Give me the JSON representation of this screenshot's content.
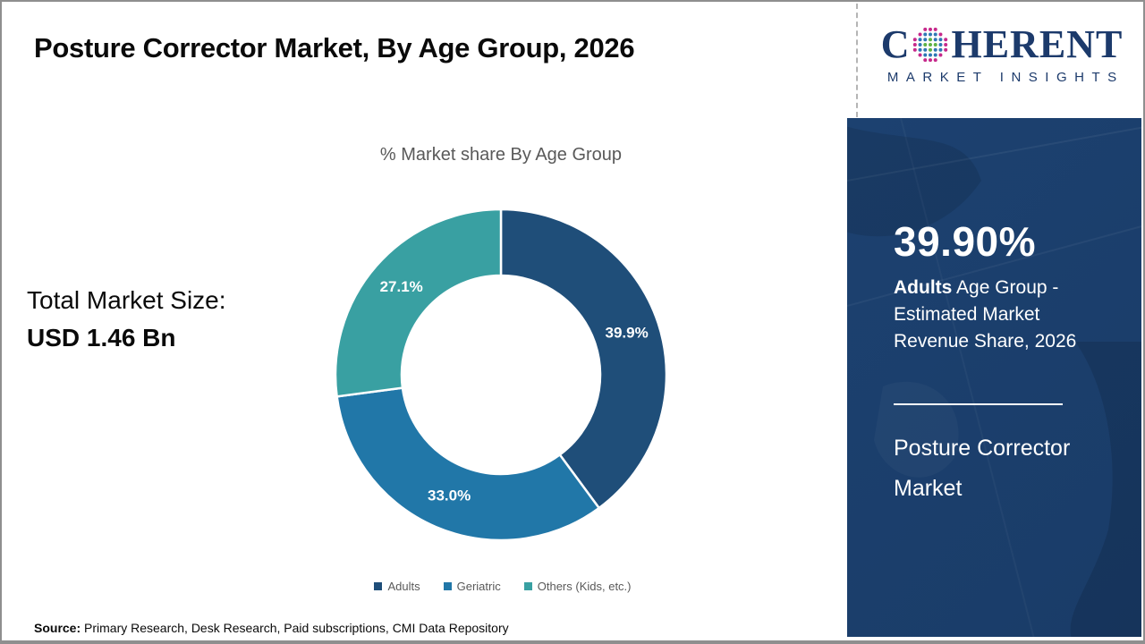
{
  "page": {
    "title": "Posture Corrector Market, By Age Group, 2026",
    "source_label": "Source:",
    "source_text": " Primary Research, Desk Research, Paid subscriptions, CMI Data Repository"
  },
  "logo": {
    "name": "Coherent Market Insights",
    "text_before_globe": "C",
    "text_after_globe": "HERENT",
    "subtitle": "MARKET INSIGHTS",
    "globe_icon": "dotted-globe-icon",
    "colors": {
      "text_navy": "#1c3a6b",
      "dot_green": "#5eb244",
      "dot_blue": "#2f77b5",
      "dot_pink": "#c6298b"
    }
  },
  "left_panel": {
    "total_label": "Total Market Size:",
    "total_value": "USD 1.46 Bn"
  },
  "chart_data": {
    "type": "pie",
    "subtype": "donut",
    "title": "% Market share By Age Group",
    "categories": [
      "Adults",
      "Geriatric",
      "Others (Kids, etc.)"
    ],
    "values": [
      39.9,
      33.0,
      27.1
    ],
    "slice_labels": [
      "39.9%",
      "33.0%",
      "27.1%"
    ],
    "colors": [
      "#1f4e79",
      "#2177a8",
      "#39a0a2"
    ],
    "start_angle_deg": -90,
    "direction": "clockwise",
    "inner_radius_ratio": 0.6,
    "legend_position": "bottom",
    "title_color": "#595959",
    "legend_text_color": "#595959",
    "slice_label_color": "#ffffff"
  },
  "sidebar": {
    "background_color": "#1c4170",
    "highlight_value": "39.90%",
    "highlight_bold": "Adults",
    "highlight_rest": " Age Group - Estimated Market Revenue Share, 2026",
    "footer_title": "Posture Corrector Market"
  }
}
